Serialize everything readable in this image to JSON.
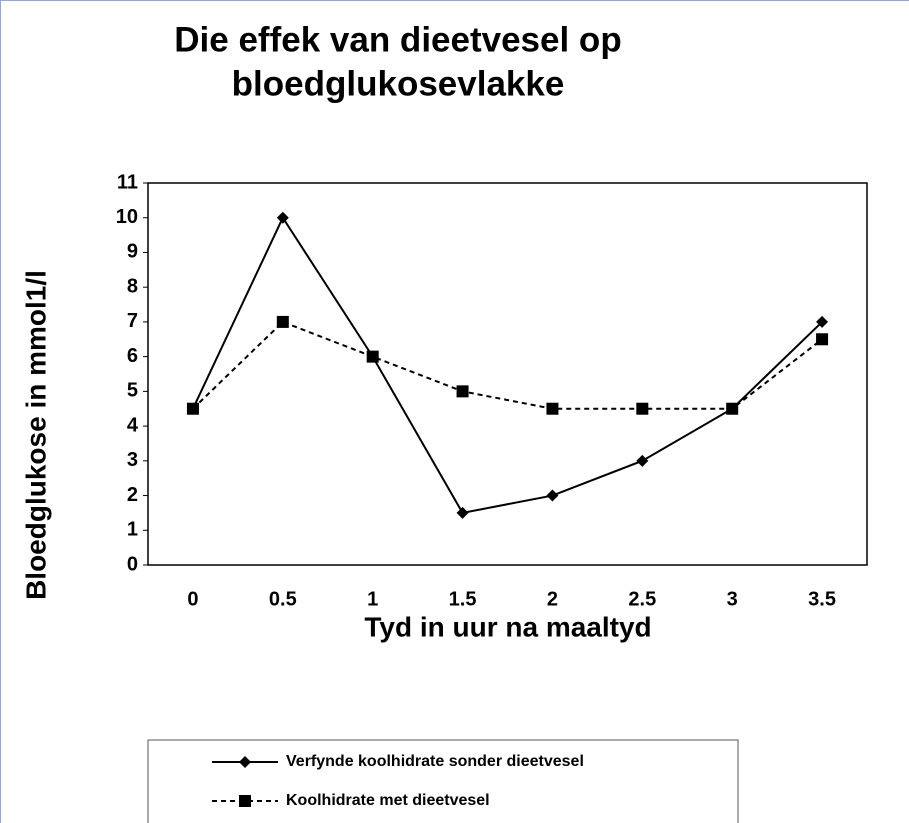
{
  "chart_data": {
    "type": "line",
    "title": [
      "Die effek van dieetvesel op",
      "bloedglukosevlakke"
    ],
    "x_label": "Tyd in uur na maaltyd",
    "y_label": "Bloedglukose in mmol1/l",
    "categories": [
      "0",
      "0.5",
      "1",
      "1.5",
      "2",
      "2.5",
      "3",
      "3.5"
    ],
    "series": [
      {
        "name": "Verfynde koolhidrate sonder dieetvesel",
        "color": "#000000",
        "marker": "diamond",
        "dashed": false,
        "values": [
          4.5,
          10,
          6,
          1.5,
          2,
          3,
          4.5,
          7
        ]
      },
      {
        "name": "Koolhidrate met dieetvesel",
        "color": "#000000",
        "marker": "square",
        "dashed": true,
        "values": [
          4.5,
          7,
          6,
          5,
          4.5,
          4.5,
          4.5,
          6.5
        ]
      }
    ],
    "ylim": [
      0,
      11
    ],
    "yticks": [
      0,
      1,
      2,
      3,
      4,
      5,
      6,
      7,
      8,
      9,
      10,
      11
    ],
    "grid": false,
    "legend": "bottom"
  }
}
